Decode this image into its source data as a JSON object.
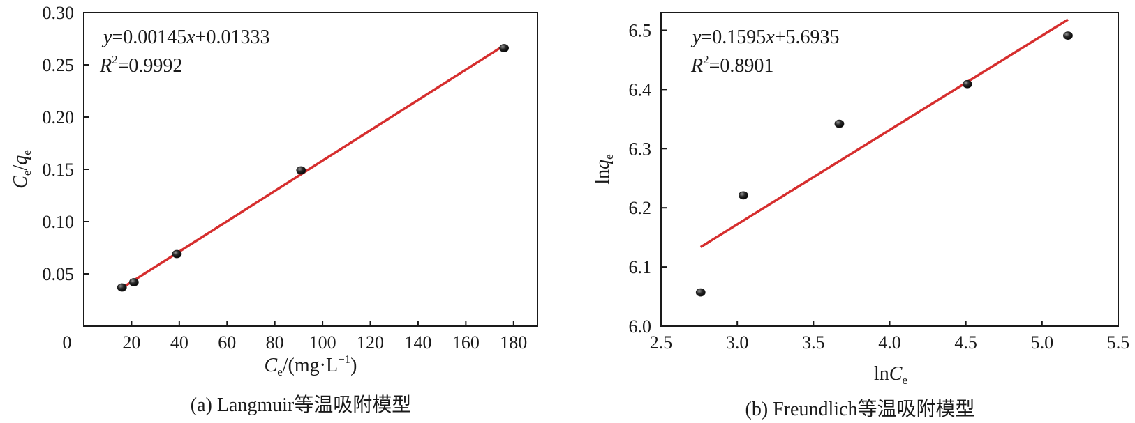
{
  "chart_data": [
    {
      "type": "scatter",
      "caption": "(a) Langmuir等温吸附模型",
      "xlabel": {
        "main": "C",
        "sub": "e",
        "rest": "/(mg·L",
        "sup": "−1",
        "close": ")"
      },
      "ylabel": {
        "main": "C",
        "sub": "e",
        "slash": "/",
        "main2": "q",
        "sub2": "e"
      },
      "xlim": [
        0,
        190
      ],
      "ylim": [
        0,
        0.3
      ],
      "xticks": [
        0,
        20,
        40,
        60,
        80,
        100,
        120,
        140,
        160,
        180
      ],
      "yticks": [
        0.05,
        0.1,
        0.15,
        0.2,
        0.25,
        0.3
      ],
      "ytick_labels": [
        "0.05",
        "0.10",
        "0.15",
        "0.20",
        "0.25",
        "0.30"
      ],
      "xtick_labels": [
        "0",
        "20",
        "40",
        "60",
        "80",
        "100",
        "120",
        "140",
        "160",
        "180"
      ],
      "points": {
        "x": [
          16,
          21,
          39,
          91,
          176
        ],
        "y": [
          0.037,
          0.042,
          0.069,
          0.149,
          0.266
        ]
      },
      "fit": {
        "slope": 0.00145,
        "intercept": 0.01333,
        "x_range": [
          16,
          176
        ]
      },
      "equation": {
        "lhs": "y",
        "rhs": "=0.00145",
        "var": "x",
        "tail": "+0.01333"
      },
      "r2": {
        "var": "R",
        "sup": "2",
        "value": "=0.9992"
      },
      "line_color": "#d62e2e",
      "marker_color": "#1f1f1f"
    },
    {
      "type": "scatter",
      "caption": "(b) Freundlich等温吸附模型",
      "xlabel": {
        "main": "ln",
        "ital": "C",
        "sub": "e"
      },
      "ylabel": {
        "main": "ln",
        "ital": "q",
        "sub": "e"
      },
      "xlim": [
        2.5,
        5.5
      ],
      "ylim": [
        6.0,
        6.53
      ],
      "xticks": [
        2.5,
        3.0,
        3.5,
        4.0,
        4.5,
        5.0,
        5.5
      ],
      "yticks": [
        6.0,
        6.1,
        6.2,
        6.3,
        6.4,
        6.5
      ],
      "xtick_labels": [
        "2.5",
        "3.0",
        "3.5",
        "4.0",
        "4.5",
        "5.0",
        "5.5"
      ],
      "ytick_labels": [
        "6.0",
        "6.1",
        "6.2",
        "6.3",
        "6.4",
        "6.5"
      ],
      "points": {
        "x": [
          2.76,
          3.04,
          3.67,
          4.51,
          5.17
        ],
        "y": [
          6.057,
          6.221,
          6.342,
          6.409,
          6.491
        ]
      },
      "fit": {
        "slope": 0.1595,
        "intercept": 5.6935,
        "x_range": [
          2.76,
          5.17
        ]
      },
      "equation": {
        "lhs": "y",
        "rhs": "=0.1595",
        "var": "x",
        "tail": "+5.6935"
      },
      "r2": {
        "var": "R",
        "sup": "2",
        "value": "=0.8901"
      },
      "line_color": "#d62e2e",
      "marker_color": "#1f1f1f"
    }
  ]
}
